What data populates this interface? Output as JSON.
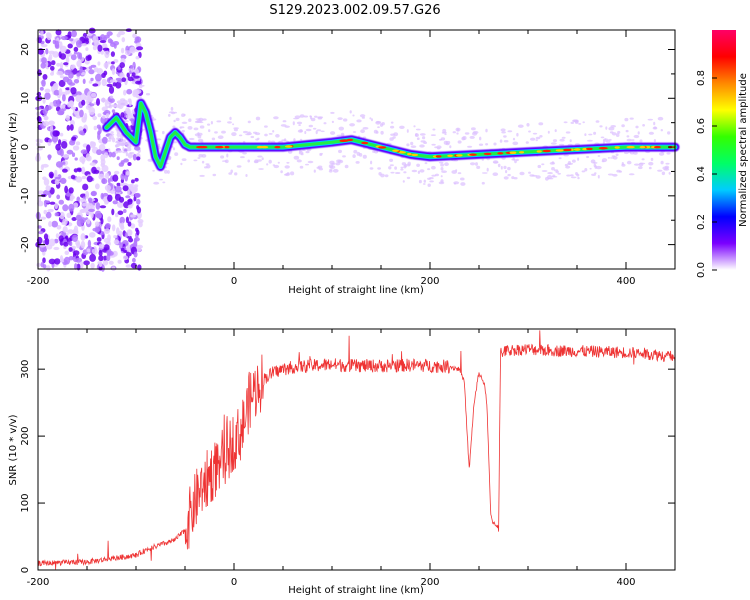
{
  "figure_title": "S129.2023.002.09.57.G26",
  "chart_data": [
    {
      "type": "heatmap",
      "title": "",
      "xlabel": "Height of straight line (km)",
      "ylabel": "Frequency (Hz)",
      "xlim": [
        -200,
        450
      ],
      "ylim": [
        -25,
        24
      ],
      "xticks": [
        "-200",
        "0",
        "200",
        "400"
      ],
      "yticks": [
        "-20",
        "-10",
        "0",
        "10",
        "20"
      ],
      "colorbar": {
        "label": "Normalized spectral amplitude",
        "range": [
          0,
          1
        ],
        "ticks": [
          "0.0",
          "0.2",
          "0.4",
          "0.6",
          "0.8"
        ],
        "colors": [
          "#ffffff",
          "#7a00ff",
          "#0000ff",
          "#00ccff",
          "#00ff66",
          "#33ff00",
          "#ffff00",
          "#ff8800",
          "#ff0000",
          "#ff0066"
        ]
      },
      "ridge": {
        "x": [
          -130,
          -120,
          -110,
          -100,
          -95,
          -90,
          -85,
          -80,
          -75,
          -70,
          -65,
          -60,
          -55,
          -50,
          -45,
          -40,
          0,
          50,
          100,
          120,
          150,
          180,
          200,
          250,
          300,
          350,
          400,
          450
        ],
        "y": [
          4,
          6,
          3,
          1,
          9,
          7,
          3,
          -2,
          -4,
          -1,
          2,
          3,
          2,
          0.5,
          0,
          0,
          0,
          0,
          1,
          1.5,
          0,
          -1.5,
          -2,
          -1.5,
          -1,
          -0.5,
          0,
          0
        ]
      }
    },
    {
      "type": "line",
      "title": "",
      "xlabel": "Height of straight line (km)",
      "ylabel": "SNR (10 * v/v)",
      "xlim": [
        -200,
        450
      ],
      "ylim": [
        0,
        360
      ],
      "xticks": [
        "-200",
        "0",
        "200",
        "400"
      ],
      "yticks": [
        "0",
        "100",
        "200",
        "300"
      ],
      "color": "#ee3333",
      "series": [
        {
          "x": [
            -200,
            -150,
            -120,
            -100,
            -90,
            -80,
            -70,
            -60,
            -50,
            -45,
            -40,
            -35,
            -30,
            -25,
            -20,
            -15,
            -10,
            -5,
            0,
            5,
            10,
            15,
            20,
            25,
            30,
            40,
            50,
            60,
            80,
            100,
            120,
            150,
            180,
            200,
            220,
            230,
            235,
            240,
            245,
            250,
            255,
            258,
            262,
            265,
            270,
            272,
            280,
            300,
            320,
            350,
            400,
            430,
            450
          ],
          "y": [
            10,
            12,
            18,
            22,
            30,
            35,
            40,
            45,
            60,
            80,
            100,
            120,
            130,
            140,
            150,
            160,
            170,
            180,
            195,
            200,
            220,
            250,
            265,
            275,
            285,
            295,
            300,
            303,
            305,
            307,
            305,
            305,
            306,
            305,
            304,
            300,
            280,
            150,
            250,
            295,
            280,
            250,
            80,
            70,
            65,
            325,
            328,
            330,
            328,
            327,
            325,
            322,
            318
          ]
        }
      ]
    }
  ]
}
